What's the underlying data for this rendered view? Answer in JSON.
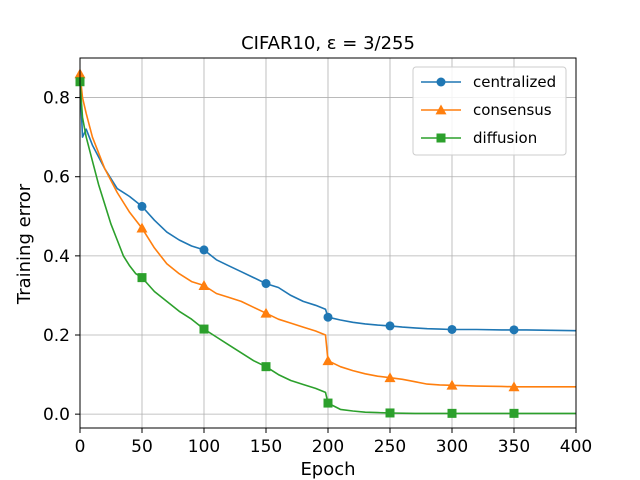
{
  "chart_data": {
    "type": "line",
    "title": "CIFAR10, ε = 3/255",
    "xlabel": "Epoch",
    "ylabel": "Training error",
    "xlim": [
      0,
      400
    ],
    "ylim": [
      -0.035,
      0.9
    ],
    "xticks": [
      0,
      50,
      100,
      150,
      200,
      250,
      300,
      350,
      400
    ],
    "yticks": [
      0.0,
      0.2,
      0.4,
      0.6,
      0.8
    ],
    "grid": true,
    "legend_position": "top-right",
    "series": [
      {
        "name": "centralized",
        "color": "#1f77b4",
        "marker": "circle",
        "x": [
          0,
          2,
          5,
          10,
          20,
          30,
          40,
          50,
          60,
          70,
          80,
          90,
          100,
          110,
          120,
          130,
          140,
          150,
          160,
          170,
          180,
          190,
          198,
          200,
          210,
          220,
          230,
          240,
          250,
          260,
          270,
          280,
          290,
          300,
          320,
          340,
          350,
          360,
          380,
          400
        ],
        "y": [
          0.85,
          0.7,
          0.72,
          0.68,
          0.62,
          0.57,
          0.55,
          0.525,
          0.49,
          0.46,
          0.44,
          0.425,
          0.415,
          0.39,
          0.375,
          0.36,
          0.345,
          0.33,
          0.32,
          0.3,
          0.285,
          0.275,
          0.265,
          0.245,
          0.238,
          0.232,
          0.228,
          0.225,
          0.223,
          0.22,
          0.218,
          0.216,
          0.215,
          0.214,
          0.214,
          0.213,
          0.213,
          0.213,
          0.212,
          0.211
        ],
        "marker_x": [
          0,
          50,
          100,
          150,
          200,
          250,
          300,
          350
        ]
      },
      {
        "name": "consensus",
        "color": "#ff7f0e",
        "marker": "triangle",
        "x": [
          0,
          2,
          5,
          10,
          20,
          30,
          40,
          50,
          60,
          70,
          80,
          90,
          100,
          110,
          120,
          130,
          140,
          150,
          160,
          170,
          180,
          190,
          198,
          200,
          210,
          220,
          230,
          240,
          250,
          260,
          270,
          280,
          290,
          300,
          320,
          340,
          350,
          360,
          380,
          400
        ],
        "y": [
          0.86,
          0.8,
          0.76,
          0.7,
          0.62,
          0.56,
          0.51,
          0.47,
          0.42,
          0.38,
          0.355,
          0.335,
          0.325,
          0.305,
          0.295,
          0.285,
          0.27,
          0.255,
          0.24,
          0.23,
          0.22,
          0.21,
          0.2,
          0.135,
          0.12,
          0.11,
          0.102,
          0.096,
          0.092,
          0.088,
          0.082,
          0.076,
          0.074,
          0.073,
          0.071,
          0.07,
          0.069,
          0.069,
          0.069,
          0.069
        ],
        "marker_x": [
          0,
          50,
          100,
          150,
          200,
          250,
          300,
          350
        ]
      },
      {
        "name": "diffusion",
        "color": "#2ca02c",
        "marker": "square",
        "x": [
          0,
          2,
          5,
          10,
          15,
          20,
          25,
          30,
          35,
          40,
          45,
          50,
          60,
          70,
          80,
          90,
          100,
          110,
          120,
          130,
          140,
          150,
          160,
          170,
          180,
          190,
          198,
          200,
          210,
          220,
          230,
          240,
          250,
          270,
          300,
          350,
          400
        ],
        "y": [
          0.84,
          0.75,
          0.7,
          0.64,
          0.58,
          0.53,
          0.48,
          0.44,
          0.4,
          0.375,
          0.355,
          0.345,
          0.31,
          0.285,
          0.26,
          0.24,
          0.215,
          0.195,
          0.175,
          0.155,
          0.135,
          0.12,
          0.1,
          0.085,
          0.075,
          0.065,
          0.055,
          0.028,
          0.012,
          0.008,
          0.005,
          0.004,
          0.003,
          0.002,
          0.002,
          0.002,
          0.002
        ],
        "marker_x": [
          0,
          50,
          100,
          150,
          200,
          250,
          300,
          350
        ]
      }
    ]
  }
}
